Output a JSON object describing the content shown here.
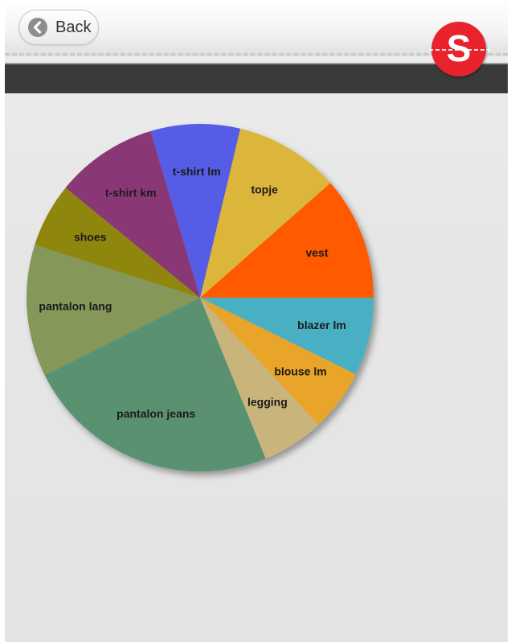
{
  "header": {
    "back_label": "Back",
    "logo_letter": "S"
  },
  "colors": {
    "logo_red": "#e8232b",
    "dark_bar": "#3a3a3a"
  },
  "icons": {
    "back": "chevron-left-circle-icon",
    "logo": "brand-s-logo"
  },
  "chart_data": {
    "type": "pie",
    "slices": [
      {
        "label": "vest",
        "value": 11.7,
        "color": "#ff5a00"
      },
      {
        "label": "topje",
        "value": 10.0,
        "color": "#dbb63a"
      },
      {
        "label": "t-shirt lm",
        "value": 8.5,
        "color": "#555ce6"
      },
      {
        "label": "t-shirt km",
        "value": 9.7,
        "color": "#8a3775"
      },
      {
        "label": "shoes",
        "value": 6.1,
        "color": "#8f8611"
      },
      {
        "label": "pantalon lang",
        "value": 12.5,
        "color": "#85985a"
      },
      {
        "label": "pantalon jeans",
        "value": 24.3,
        "color": "#5a9271"
      },
      {
        "label": "legging",
        "value": 5.9,
        "color": "#c9b47c"
      },
      {
        "label": "blouse lm",
        "value": 5.9,
        "color": "#e9a42b"
      },
      {
        "label": "blazer lm",
        "value": 7.4,
        "color": "#4ab0c4"
      }
    ]
  }
}
